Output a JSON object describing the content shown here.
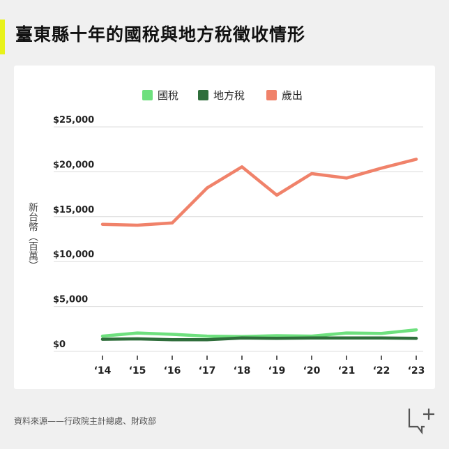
{
  "header": {
    "title": "臺東縣十年的國稅與地方稅徵收情形"
  },
  "chart_data": {
    "type": "line",
    "categories": [
      "‘14",
      "‘15",
      "‘16",
      "‘17",
      "‘18",
      "‘19",
      "‘20",
      "‘21",
      "‘22",
      "‘23"
    ],
    "ylabel": "新台幣（百萬）",
    "ylim": [
      0,
      25000
    ],
    "yticks": [
      0,
      5000,
      10000,
      15000,
      20000,
      25000
    ],
    "ytick_labels": [
      "$0",
      "$5,000",
      "$10,000",
      "$15,000",
      "$20,000",
      "$25,000"
    ],
    "grid": true,
    "legend_position": "top",
    "series": [
      {
        "name": "國稅",
        "color": "#6ee07e",
        "values": [
          1700,
          2050,
          1900,
          1700,
          1650,
          1750,
          1700,
          2050,
          2000,
          2400
        ]
      },
      {
        "name": "地方稅",
        "color": "#2f6e3b",
        "values": [
          1350,
          1400,
          1300,
          1300,
          1500,
          1450,
          1500,
          1500,
          1500,
          1450
        ]
      },
      {
        "name": "歲出",
        "color": "#f0826a",
        "values": [
          14150,
          14050,
          14300,
          18200,
          20550,
          17400,
          19800,
          19300,
          20400,
          21400
        ]
      }
    ]
  },
  "footer": {
    "source": "資料來源——行政院主計總處、財政部"
  }
}
